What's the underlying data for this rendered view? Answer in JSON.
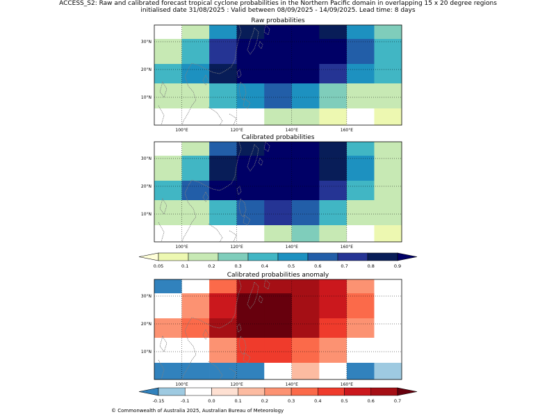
{
  "figure": {
    "title_line1": "ACCESS_S2: Raw and calibrated forecast tropical cyclone probabilities in the Northern Pacific domain in overlapping 15 x 20 degree regions",
    "title_line2": "initialised date 31/08/2025 :  Valid between 08/09/2025 - 14/09/2025. Lead time: 8 days",
    "footer": "© Commonwealth of Australia 2025, Australian Bureau of Meteorology"
  },
  "colors": {
    "probability_scale": [
      "#ffffd9",
      "#edf8b1",
      "#c7e9b4",
      "#7fcdbb",
      "#41b6c4",
      "#1d91c0",
      "#225ea8",
      "#253494",
      "#081d58",
      "#000066"
    ],
    "anomaly_scale": [
      "#3182bd",
      "#9ecae1",
      "#ffffff",
      "#fee0d2",
      "#fcbba1",
      "#fc9272",
      "#fb6a4a",
      "#ef3b2c",
      "#cb181d",
      "#a50f15",
      "#67000d"
    ],
    "coastline": "#808080"
  },
  "chart_data": [
    {
      "type": "heatmap",
      "title": "Raw probabilities",
      "x_ticks": [
        "100°E",
        "120°E",
        "140°E",
        "160°E"
      ],
      "y_ticks": [
        "10°N",
        "20°N",
        "30°N"
      ],
      "x_range_deg": [
        90,
        180
      ],
      "y_range_deg": [
        0,
        36
      ],
      "grid": true,
      "color_scale": "probability_scale",
      "cell_lon_edges": [
        90,
        100,
        110,
        120,
        130,
        140,
        150,
        160,
        170,
        180
      ],
      "cell_lat_edges": [
        36,
        31,
        22,
        15,
        6,
        0
      ],
      "values": [
        [
          0.0,
          0.12,
          0.45,
          0.75,
          0.8,
          0.8,
          0.75,
          0.45,
          0.25
        ],
        [
          0.12,
          0.35,
          0.65,
          0.8,
          0.95,
          0.8,
          0.8,
          0.55,
          0.35
        ],
        [
          0.35,
          0.45,
          0.75,
          0.8,
          0.95,
          0.8,
          0.65,
          0.45,
          0.35
        ],
        [
          0.12,
          0.12,
          0.35,
          0.45,
          0.55,
          0.45,
          0.25,
          0.12,
          0.12
        ],
        [
          0.0,
          0.0,
          0.0,
          0.0,
          0.12,
          0.12,
          0.06,
          0.0,
          0.06
        ]
      ]
    },
    {
      "type": "heatmap",
      "title": "Calibrated probabilities",
      "x_ticks": [
        "100°E",
        "120°E",
        "140°E",
        "160°E"
      ],
      "y_ticks": [
        "10°N",
        "20°N",
        "30°N"
      ],
      "x_range_deg": [
        90,
        180
      ],
      "y_range_deg": [
        0,
        36
      ],
      "grid": true,
      "color_scale": "probability_scale",
      "cell_lon_edges": [
        90,
        100,
        110,
        120,
        130,
        140,
        150,
        160,
        170,
        180
      ],
      "cell_lat_edges": [
        36,
        31,
        22,
        15,
        6,
        0
      ],
      "values": [
        [
          0.0,
          0.12,
          0.55,
          0.75,
          0.8,
          0.8,
          0.75,
          0.35,
          0.12
        ],
        [
          0.12,
          0.35,
          0.75,
          0.95,
          0.95,
          0.8,
          0.75,
          0.45,
          0.12
        ],
        [
          0.35,
          0.55,
          0.8,
          0.95,
          0.95,
          0.8,
          0.65,
          0.35,
          0.12
        ],
        [
          0.12,
          0.12,
          0.35,
          0.55,
          0.65,
          0.55,
          0.35,
          0.12,
          0.12
        ],
        [
          0.0,
          0.0,
          0.0,
          0.0,
          0.12,
          0.25,
          0.12,
          0.0,
          0.06
        ]
      ]
    },
    {
      "type": "heatmap",
      "title": "Calibrated probabilities anomaly",
      "x_ticks": [
        "100°E",
        "120°E",
        "140°E",
        "160°E"
      ],
      "y_ticks": [
        "10°N",
        "20°N",
        "30°N"
      ],
      "x_range_deg": [
        90,
        180
      ],
      "y_range_deg": [
        0,
        36
      ],
      "grid": true,
      "color_scale": "anomaly_scale",
      "cell_lon_edges": [
        90,
        100,
        110,
        120,
        130,
        140,
        150,
        160,
        170,
        180
      ],
      "cell_lat_edges": [
        36,
        31,
        22,
        15,
        6,
        0
      ],
      "values": [
        [
          -0.2,
          0.0,
          0.35,
          0.65,
          0.65,
          0.6,
          0.55,
          0.25,
          0.0
        ],
        [
          0.0,
          0.25,
          0.55,
          0.75,
          0.75,
          0.6,
          0.55,
          0.35,
          0.0
        ],
        [
          0.25,
          0.35,
          0.6,
          0.75,
          0.75,
          0.6,
          0.45,
          0.25,
          0.0
        ],
        [
          0.0,
          0.0,
          0.25,
          0.45,
          0.45,
          0.35,
          0.25,
          0.0,
          0.0
        ],
        [
          -0.2,
          -0.2,
          -0.2,
          -0.2,
          0.0,
          0.15,
          0.0,
          -0.2,
          -0.12
        ]
      ]
    }
  ],
  "colorbars": {
    "probability": {
      "tick_labels": [
        "0.05",
        "0.1",
        "0.2",
        "0.3",
        "0.4",
        "0.5",
        "0.6",
        "0.7",
        "0.8",
        "0.9"
      ],
      "bounds": [
        0.05,
        0.1,
        0.2,
        0.3,
        0.4,
        0.5,
        0.6,
        0.7,
        0.8,
        0.9
      ],
      "extend": "both"
    },
    "anomaly": {
      "tick_labels": [
        "-0.15",
        "-0.1",
        "0.0",
        "0.1",
        "0.2",
        "0.3",
        "0.4",
        "0.5",
        "0.6",
        "0.7"
      ],
      "bounds": [
        -0.15,
        -0.1,
        0.0,
        0.1,
        0.2,
        0.3,
        0.4,
        0.5,
        0.6,
        0.7
      ],
      "extend": "both"
    }
  }
}
